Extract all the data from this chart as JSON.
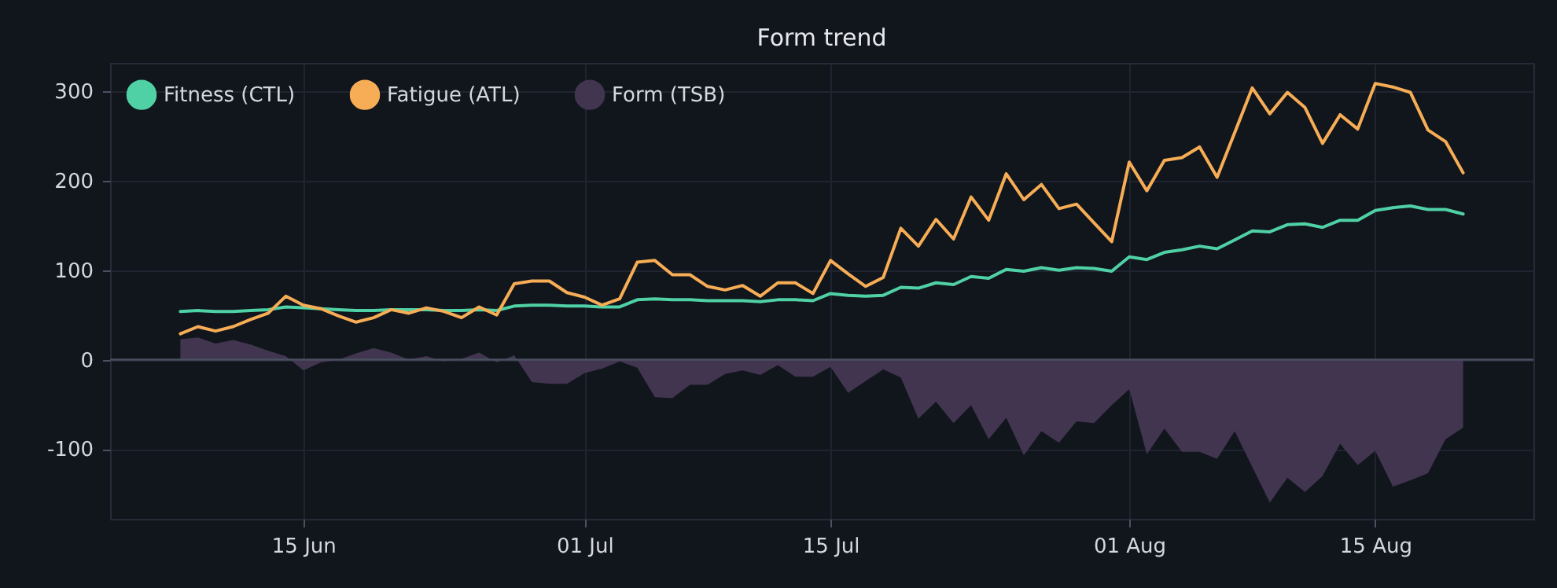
{
  "chart_data": {
    "type": "line",
    "title": "Form trend",
    "x": [
      "--06-08",
      "--06-09",
      "--06-10",
      "--06-11",
      "--06-12",
      "--06-13",
      "--06-14",
      "--06-15",
      "--06-16",
      "--06-17",
      "--06-18",
      "--06-19",
      "--06-20",
      "--06-21",
      "--06-22",
      "--06-23",
      "--06-24",
      "--06-25",
      "--06-26",
      "--06-27",
      "--06-28",
      "--06-29",
      "--06-30",
      "--07-01",
      "--07-02",
      "--07-03",
      "--07-04",
      "--07-05",
      "--07-06",
      "--07-07",
      "--07-08",
      "--07-09",
      "--07-10",
      "--07-11",
      "--07-12",
      "--07-13",
      "--07-14",
      "--07-15",
      "--07-16",
      "--07-17",
      "--07-18",
      "--07-19",
      "--07-20",
      "--07-21",
      "--07-22",
      "--07-23",
      "--07-24",
      "--07-25",
      "--07-26",
      "--07-27",
      "--07-28",
      "--07-29",
      "--07-30",
      "--07-31",
      "--08-01",
      "--08-02",
      "--08-03",
      "--08-04",
      "--08-05",
      "--08-06",
      "--08-07",
      "--08-08",
      "--08-09",
      "--08-10",
      "--08-11",
      "--08-12",
      "--08-13",
      "--08-14",
      "--08-15",
      "--08-16",
      "--08-17",
      "--08-18",
      "--08-19",
      "--08-20"
    ],
    "series": [
      {
        "name": "Fitness (CTL)",
        "color": "#4fd1a5",
        "values": [
          54,
          55,
          54,
          54,
          55,
          56,
          59,
          58,
          57,
          56,
          55,
          55,
          56,
          56,
          56,
          55,
          55,
          56,
          55,
          60,
          61,
          61,
          60,
          60,
          59,
          59,
          67,
          68,
          67,
          67,
          66,
          66,
          66,
          65,
          67,
          67,
          66,
          74,
          72,
          71,
          72,
          81,
          80,
          86,
          84,
          93,
          91,
          101,
          99,
          103,
          100,
          103,
          102,
          99,
          115,
          112,
          120,
          123,
          127,
          124,
          134,
          144,
          143,
          151,
          152,
          148,
          156,
          156,
          167,
          170,
          172,
          168,
          168,
          163
        ]
      },
      {
        "name": "Fatigue (ATL)",
        "color": "#f6ad55",
        "values": [
          29,
          37,
          32,
          37,
          45,
          52,
          71,
          61,
          57,
          49,
          42,
          47,
          56,
          52,
          58,
          54,
          47,
          59,
          50,
          85,
          88,
          88,
          75,
          70,
          61,
          68,
          109,
          111,
          95,
          95,
          82,
          78,
          83,
          71,
          86,
          86,
          74,
          111,
          96,
          82,
          92,
          147,
          127,
          157,
          135,
          182,
          156,
          208,
          179,
          196,
          169,
          174,
          153,
          132,
          221,
          189,
          223,
          226,
          238,
          204,
          254,
          304,
          275,
          299,
          282,
          242,
          274,
          258,
          309,
          305,
          299,
          257,
          244,
          209
        ]
      },
      {
        "name": "Form (TSB)",
        "type": "area",
        "color": "#41354f",
        "values": [
          23,
          25,
          18,
          22,
          17,
          10,
          4,
          -12,
          -3,
          0,
          7,
          13,
          8,
          0,
          4,
          -2,
          1,
          8,
          -3,
          5,
          -25,
          -27,
          -27,
          -15,
          -10,
          -2,
          -9,
          -42,
          -43,
          -28,
          -28,
          -16,
          -12,
          -17,
          -6,
          -19,
          -19,
          -8,
          -37,
          -24,
          -11,
          -20,
          -66,
          -47,
          -71,
          -51,
          -89,
          -65,
          -107,
          -80,
          -93,
          -69,
          -71,
          -51,
          -33,
          -106,
          -77,
          -103,
          -103,
          -111,
          -80,
          -120,
          -160,
          -132,
          -148,
          -130,
          -94,
          -118,
          -102,
          -142,
          -135,
          -127,
          -89,
          -76
        ]
      }
    ],
    "xlim": [
      "--06-04",
      "--08-24"
    ],
    "xticks": [
      {
        "value": "--06-15",
        "label": "15 Jun"
      },
      {
        "value": "--07-01",
        "label": "01 Jul"
      },
      {
        "value": "--07-15",
        "label": "15 Jul"
      },
      {
        "value": "--08-01",
        "label": "01 Aug"
      },
      {
        "value": "--08-15",
        "label": "15 Aug"
      }
    ],
    "ylim": [
      -178,
      332
    ],
    "yticks": [
      -100,
      0,
      100,
      200,
      300
    ],
    "ref_lines": [
      {
        "axis": "y",
        "value": 0,
        "color": "#4a5161"
      }
    ],
    "grid": true,
    "legend": "top left"
  }
}
